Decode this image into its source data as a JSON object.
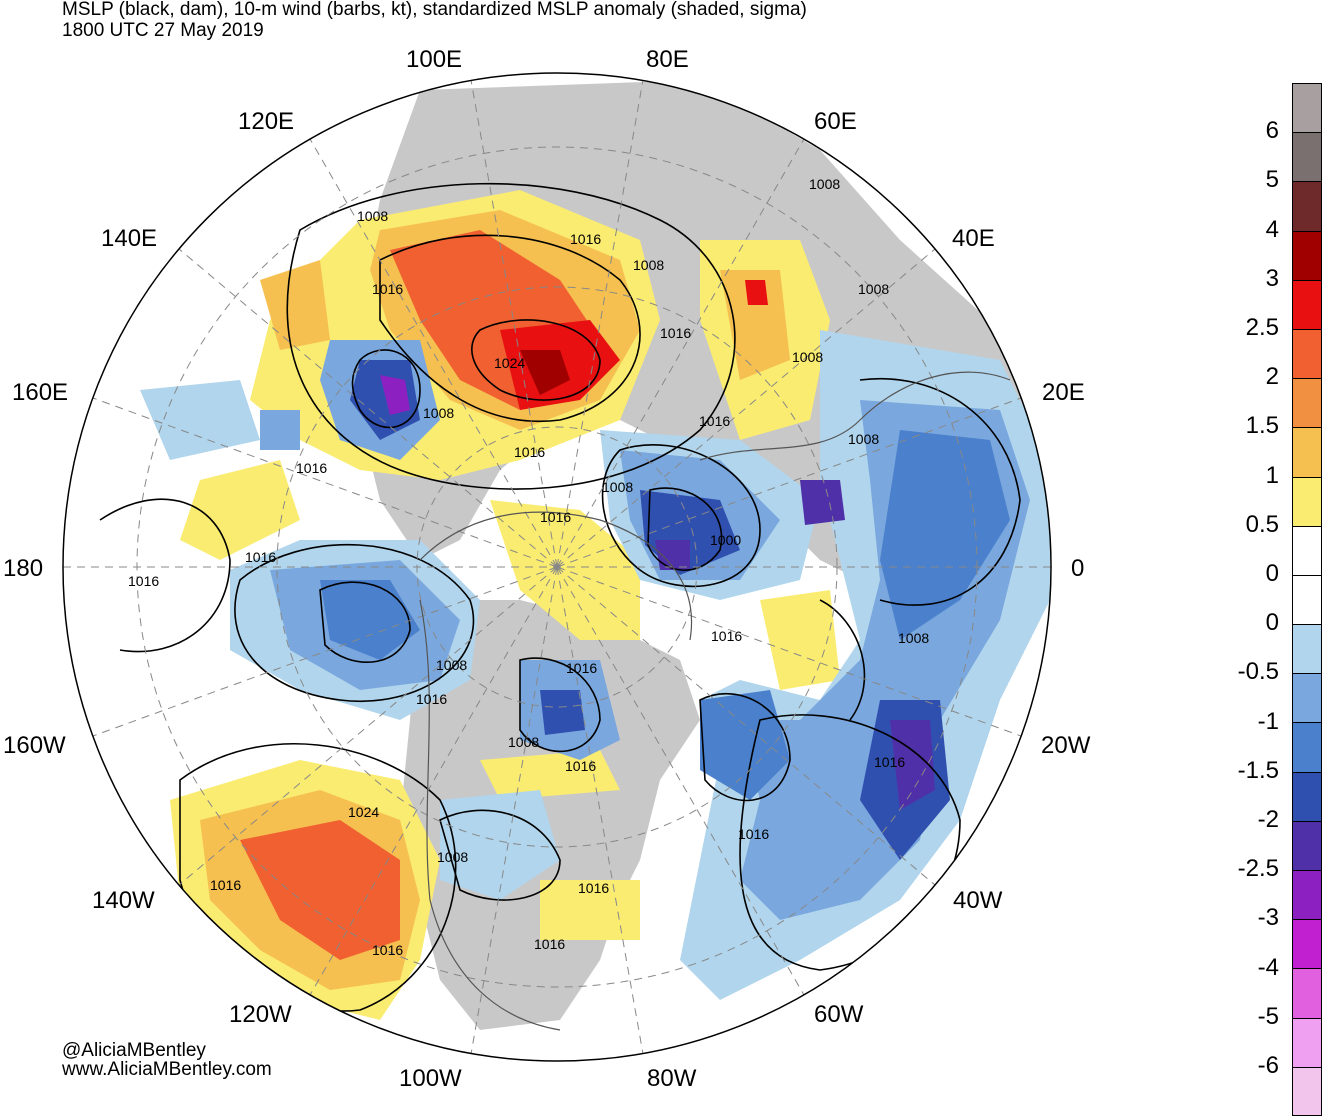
{
  "title": {
    "line1": "MSLP (black, dam), 10-m wind (barbs, kt), standardized MSLP anomaly (shaded, sigma)",
    "line2": "1800 UTC 27 May 2019"
  },
  "credits": {
    "twitter": "@AliciaMBentley",
    "website": "www.AliciaMBentley.com"
  },
  "longitude_labels": [
    "100E",
    "80E",
    "120E",
    "60E",
    "140E",
    "40E",
    "160E",
    "20E",
    "180",
    "0",
    "160W",
    "20W",
    "140W",
    "40W",
    "120W",
    "60W",
    "100W",
    "80W"
  ],
  "isobar_labels": [
    "1008",
    "1016",
    "1008",
    "1016",
    "1016",
    "1008",
    "1024",
    "1008",
    "1016",
    "1008",
    "1016",
    "1008",
    "1016",
    "1016",
    "1008",
    "1000",
    "1008",
    "1016",
    "1008",
    "1016",
    "1016",
    "1016",
    "1016",
    "1008",
    "1016",
    "1016",
    "1024",
    "1008",
    "1016",
    "1016",
    "1016",
    "1016",
    "1016",
    "1008"
  ],
  "colorbar": {
    "labels": [
      "6",
      "5",
      "4",
      "3",
      "2.5",
      "2",
      "1.5",
      "1",
      "0.5",
      "0",
      "0",
      "-0.5",
      "-1",
      "-1.5",
      "-2",
      "-2.5",
      "-3",
      "-4",
      "-5",
      "-6"
    ],
    "colors": [
      "#a8a0a0",
      "#7a7070",
      "#6e2a2a",
      "#a00000",
      "#e81010",
      "#f06030",
      "#f09040",
      "#f5c050",
      "#faec70",
      "#ffffff",
      "#ffffff",
      "#b0d5ec",
      "#7aa8de",
      "#4a80cc",
      "#3050b0",
      "#5030a8",
      "#8c20c0",
      "#c020d0",
      "#e060e0",
      "#f0a0f0",
      "#f2c6ec"
    ]
  },
  "colors": {
    "positive_anomaly_light": "#faec70",
    "positive_anomaly_mid": "#f09040",
    "positive_anomaly_strong": "#e81010",
    "negative_anomaly_light": "#b0d5ec",
    "negative_anomaly_mid": "#4a80cc",
    "negative_anomaly_strong": "#5030a8",
    "land_gray": "#c8c8c8"
  }
}
